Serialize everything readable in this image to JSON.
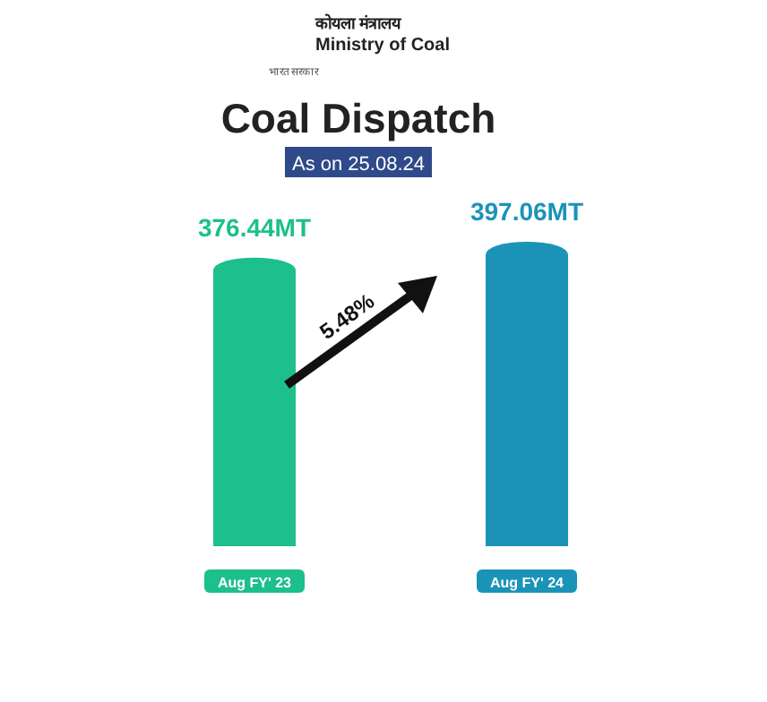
{
  "chart_data": {
    "type": "bar",
    "title": "Coal Dispatch",
    "subtitle": "As on 25.08.24",
    "categories": [
      "Aug FY' 23",
      "Aug FY' 24"
    ],
    "values": [
      376.44,
      397.06
    ],
    "value_labels": [
      "376.44MT",
      "397.06MT"
    ],
    "colors": [
      "#1dbf8c",
      "#1b93b8"
    ],
    "annotations": [
      "कोयला मंत्रालय",
      "Ministry of Coal",
      "भारत सरकार",
      "5.48%"
    ]
  }
}
